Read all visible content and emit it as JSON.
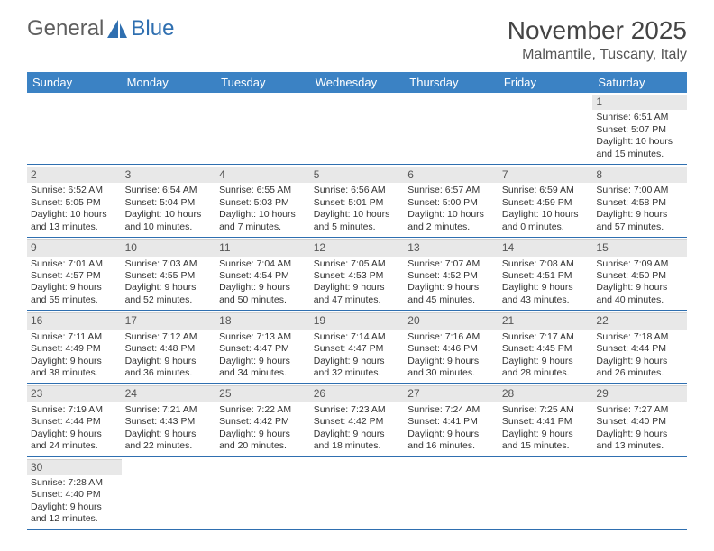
{
  "logo": {
    "part1": "General",
    "part2": "Blue"
  },
  "title": "November 2025",
  "location": "Malmantile, Tuscany, Italy",
  "colors": {
    "header_bg": "#3b82c4",
    "header_text": "#ffffff",
    "daynum_bg": "#e8e8e8",
    "border": "#2f6fb0",
    "logo_gray": "#5e5e5e",
    "logo_blue": "#2f6fb0"
  },
  "day_names": [
    "Sunday",
    "Monday",
    "Tuesday",
    "Wednesday",
    "Thursday",
    "Friday",
    "Saturday"
  ],
  "weeks": [
    [
      null,
      null,
      null,
      null,
      null,
      null,
      {
        "n": 1,
        "sr": "6:51 AM",
        "ss": "5:07 PM",
        "dl": "10 hours and 15 minutes."
      }
    ],
    [
      {
        "n": 2,
        "sr": "6:52 AM",
        "ss": "5:05 PM",
        "dl": "10 hours and 13 minutes."
      },
      {
        "n": 3,
        "sr": "6:54 AM",
        "ss": "5:04 PM",
        "dl": "10 hours and 10 minutes."
      },
      {
        "n": 4,
        "sr": "6:55 AM",
        "ss": "5:03 PM",
        "dl": "10 hours and 7 minutes."
      },
      {
        "n": 5,
        "sr": "6:56 AM",
        "ss": "5:01 PM",
        "dl": "10 hours and 5 minutes."
      },
      {
        "n": 6,
        "sr": "6:57 AM",
        "ss": "5:00 PM",
        "dl": "10 hours and 2 minutes."
      },
      {
        "n": 7,
        "sr": "6:59 AM",
        "ss": "4:59 PM",
        "dl": "10 hours and 0 minutes."
      },
      {
        "n": 8,
        "sr": "7:00 AM",
        "ss": "4:58 PM",
        "dl": "9 hours and 57 minutes."
      }
    ],
    [
      {
        "n": 9,
        "sr": "7:01 AM",
        "ss": "4:57 PM",
        "dl": "9 hours and 55 minutes."
      },
      {
        "n": 10,
        "sr": "7:03 AM",
        "ss": "4:55 PM",
        "dl": "9 hours and 52 minutes."
      },
      {
        "n": 11,
        "sr": "7:04 AM",
        "ss": "4:54 PM",
        "dl": "9 hours and 50 minutes."
      },
      {
        "n": 12,
        "sr": "7:05 AM",
        "ss": "4:53 PM",
        "dl": "9 hours and 47 minutes."
      },
      {
        "n": 13,
        "sr": "7:07 AM",
        "ss": "4:52 PM",
        "dl": "9 hours and 45 minutes."
      },
      {
        "n": 14,
        "sr": "7:08 AM",
        "ss": "4:51 PM",
        "dl": "9 hours and 43 minutes."
      },
      {
        "n": 15,
        "sr": "7:09 AM",
        "ss": "4:50 PM",
        "dl": "9 hours and 40 minutes."
      }
    ],
    [
      {
        "n": 16,
        "sr": "7:11 AM",
        "ss": "4:49 PM",
        "dl": "9 hours and 38 minutes."
      },
      {
        "n": 17,
        "sr": "7:12 AM",
        "ss": "4:48 PM",
        "dl": "9 hours and 36 minutes."
      },
      {
        "n": 18,
        "sr": "7:13 AM",
        "ss": "4:47 PM",
        "dl": "9 hours and 34 minutes."
      },
      {
        "n": 19,
        "sr": "7:14 AM",
        "ss": "4:47 PM",
        "dl": "9 hours and 32 minutes."
      },
      {
        "n": 20,
        "sr": "7:16 AM",
        "ss": "4:46 PM",
        "dl": "9 hours and 30 minutes."
      },
      {
        "n": 21,
        "sr": "7:17 AM",
        "ss": "4:45 PM",
        "dl": "9 hours and 28 minutes."
      },
      {
        "n": 22,
        "sr": "7:18 AM",
        "ss": "4:44 PM",
        "dl": "9 hours and 26 minutes."
      }
    ],
    [
      {
        "n": 23,
        "sr": "7:19 AM",
        "ss": "4:44 PM",
        "dl": "9 hours and 24 minutes."
      },
      {
        "n": 24,
        "sr": "7:21 AM",
        "ss": "4:43 PM",
        "dl": "9 hours and 22 minutes."
      },
      {
        "n": 25,
        "sr": "7:22 AM",
        "ss": "4:42 PM",
        "dl": "9 hours and 20 minutes."
      },
      {
        "n": 26,
        "sr": "7:23 AM",
        "ss": "4:42 PM",
        "dl": "9 hours and 18 minutes."
      },
      {
        "n": 27,
        "sr": "7:24 AM",
        "ss": "4:41 PM",
        "dl": "9 hours and 16 minutes."
      },
      {
        "n": 28,
        "sr": "7:25 AM",
        "ss": "4:41 PM",
        "dl": "9 hours and 15 minutes."
      },
      {
        "n": 29,
        "sr": "7:27 AM",
        "ss": "4:40 PM",
        "dl": "9 hours and 13 minutes."
      }
    ],
    [
      {
        "n": 30,
        "sr": "7:28 AM",
        "ss": "4:40 PM",
        "dl": "9 hours and 12 minutes."
      },
      null,
      null,
      null,
      null,
      null,
      null
    ]
  ],
  "labels": {
    "sunrise": "Sunrise: ",
    "sunset": "Sunset: ",
    "daylight": "Daylight: "
  }
}
